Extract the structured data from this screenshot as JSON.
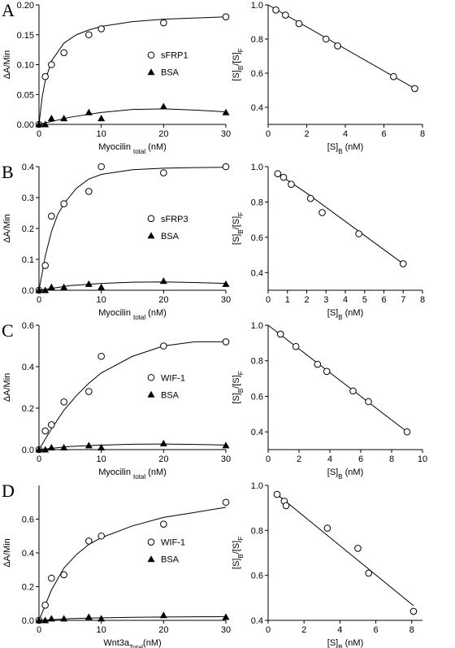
{
  "chart_data": [
    {
      "type": "scatter",
      "panel": "A",
      "xlabel": [
        "Myocilin ",
        "total",
        " (nM)"
      ],
      "ylabel": [
        "ΔA/Min"
      ],
      "xlim": [
        0,
        30
      ],
      "xticks": [
        0,
        10,
        20,
        30
      ],
      "ylim": [
        0,
        0.2
      ],
      "yticks": [
        {
          "value": 0,
          "label": "0.00"
        },
        0.05,
        {
          "value": 0.1,
          "label": "0.10"
        },
        0.15,
        {
          "value": 0.2,
          "label": "0.20"
        }
      ],
      "legend": "center right",
      "x": [
        0,
        1,
        2,
        4,
        8,
        10,
        20,
        30
      ],
      "series": [
        {
          "name": "sFRP1",
          "marker": "circle",
          "color": "#000000",
          "values": [
            0,
            0.08,
            0.1,
            0.12,
            0.15,
            0.16,
            0.17,
            0.18
          ],
          "fit": {
            "x": [
              0,
              0.5,
              1,
              2,
              4,
              6,
              8,
              10,
              15,
              20,
              25,
              30
            ],
            "values": [
              0,
              0.045,
              0.073,
              0.106,
              0.136,
              0.15,
              0.158,
              0.164,
              0.172,
              0.176,
              0.178,
              0.18
            ]
          }
        },
        {
          "name": "BSA",
          "marker": "triangle",
          "color": "#000000",
          "values": [
            0,
            0,
            0.01,
            0.01,
            0.02,
            0.01,
            0.03,
            0.02
          ],
          "fit": {
            "x": [
              0,
              5,
              10,
              15,
              20,
              25,
              30
            ],
            "values": [
              0,
              0.012,
              0.02,
              0.025,
              0.026,
              0.024,
              0.021
            ]
          }
        }
      ]
    },
    {
      "type": "scatter",
      "xlabel": [
        "[S]",
        "B",
        " (nM)"
      ],
      "ylabel": [
        "[S]",
        "B",
        "/[S]",
        "F"
      ],
      "xlim": [
        0,
        8
      ],
      "xticks": [
        0,
        2,
        4,
        6,
        8
      ],
      "ylim": [
        0.3,
        1.0
      ],
      "yticks": [
        0.4,
        0.6,
        0.8,
        {
          "value": 1.0,
          "label": "1.0"
        }
      ],
      "x": [
        0.4,
        0.9,
        1.6,
        3.0,
        3.6,
        6.5,
        7.6
      ],
      "values": [
        0.97,
        0.94,
        0.89,
        0.8,
        0.76,
        0.58,
        0.51
      ],
      "color": "#000000",
      "fit": {
        "x": [
          0,
          7.6
        ],
        "values": [
          1.0,
          0.51
        ]
      }
    },
    {
      "type": "scatter",
      "panel": "B",
      "xlabel": [
        "Myocilin ",
        "total",
        " (nM)"
      ],
      "ylabel": [
        "ΔA/Min"
      ],
      "xlim": [
        0,
        30
      ],
      "xticks": [
        0,
        10,
        20,
        30
      ],
      "ylim": [
        0,
        0.4
      ],
      "yticks": [
        {
          "value": 0,
          "label": "0.0"
        },
        0.1,
        0.2,
        0.3,
        0.4
      ],
      "legend": "center right",
      "x": [
        0,
        1,
        2,
        4,
        8,
        10,
        20,
        30
      ],
      "series": [
        {
          "name": "sFRP3",
          "marker": "circle",
          "color": "#000000",
          "values": [
            0,
            0.08,
            0.24,
            0.28,
            0.32,
            0.4,
            0.38,
            0.4
          ],
          "fit": {
            "x": [
              0,
              1,
              2,
              3,
              4,
              6,
              8,
              10,
              15,
              20,
              25,
              30
            ],
            "values": [
              0,
              0.11,
              0.19,
              0.245,
              0.28,
              0.33,
              0.36,
              0.375,
              0.39,
              0.395,
              0.397,
              0.398
            ]
          }
        },
        {
          "name": "BSA",
          "marker": "triangle",
          "color": "#000000",
          "values": [
            0,
            0,
            0.01,
            0.01,
            0.02,
            0.01,
            0.03,
            0.02
          ],
          "fit": {
            "x": [
              0,
              5,
              10,
              15,
              20,
              25,
              30
            ],
            "values": [
              0,
              0.015,
              0.022,
              0.026,
              0.027,
              0.025,
              0.022
            ]
          }
        }
      ]
    },
    {
      "type": "scatter",
      "xlabel": [
        "[S]",
        "B",
        " (nM)"
      ],
      "ylabel": [
        "[S]",
        "B",
        "/[S]",
        "F"
      ],
      "xlim": [
        0,
        8
      ],
      "xticks": [
        0,
        1,
        2,
        3,
        4,
        5,
        6,
        7,
        8
      ],
      "ylim": [
        0.3,
        1.0
      ],
      "yticks": [
        0.4,
        0.6,
        0.8,
        {
          "value": 1.0,
          "label": "1.0"
        }
      ],
      "x": [
        0.5,
        0.8,
        1.2,
        2.2,
        2.8,
        4.7,
        7.0
      ],
      "values": [
        0.96,
        0.94,
        0.9,
        0.82,
        0.74,
        0.62,
        0.45
      ],
      "color": "#000000",
      "fit": {
        "x": [
          0.5,
          2,
          4,
          6,
          7
        ],
        "values": [
          0.96,
          0.85,
          0.69,
          0.53,
          0.45
        ]
      }
    },
    {
      "type": "scatter",
      "panel": "C",
      "xlabel": [
        "Myocilin ",
        "total",
        " (nM)"
      ],
      "ylabel": [
        "ΔA/Min"
      ],
      "xlim": [
        0,
        30
      ],
      "xticks": [
        0,
        10,
        20,
        30
      ],
      "ylim": [
        0,
        0.6
      ],
      "yticks": [
        {
          "value": 0,
          "label": "0.0"
        },
        0.2,
        0.4,
        0.6
      ],
      "legend": "center right",
      "x": [
        0,
        1,
        2,
        4,
        8,
        10,
        20,
        30
      ],
      "series": [
        {
          "name": "WIF-1",
          "marker": "circle",
          "color": "#000000",
          "values": [
            0,
            0.09,
            0.12,
            0.23,
            0.28,
            0.45,
            0.5,
            0.52
          ],
          "fit": {
            "x": [
              0,
              2,
              4,
              6,
              8,
              10,
              15,
              20,
              25,
              30
            ],
            "values": [
              0,
              0.1,
              0.19,
              0.26,
              0.32,
              0.37,
              0.45,
              0.5,
              0.52,
              0.52
            ]
          }
        },
        {
          "name": "BSA",
          "marker": "triangle",
          "color": "#000000",
          "values": [
            0,
            0,
            0.01,
            0.01,
            0.02,
            0.01,
            0.03,
            0.02
          ],
          "fit": {
            "x": [
              0,
              5,
              10,
              15,
              20,
              25,
              30
            ],
            "values": [
              0,
              0.015,
              0.022,
              0.026,
              0.027,
              0.025,
              0.022
            ]
          }
        }
      ]
    },
    {
      "type": "scatter",
      "xlabel": [
        "[S]",
        "B",
        " (nM)"
      ],
      "ylabel": [
        "[S]",
        "B",
        "/[S]",
        "F"
      ],
      "xlim": [
        0,
        10
      ],
      "xticks": [
        0,
        2,
        4,
        6,
        8,
        10
      ],
      "ylim": [
        0.3,
        1.0
      ],
      "yticks": [
        0.4,
        0.6,
        0.8,
        {
          "value": 1.0,
          "label": "1.0"
        }
      ],
      "x": [
        0.8,
        1.8,
        3.2,
        3.8,
        5.5,
        6.5,
        9.0
      ],
      "values": [
        0.95,
        0.88,
        0.78,
        0.74,
        0.63,
        0.57,
        0.4
      ],
      "color": "#000000",
      "fit": {
        "x": [
          0,
          9
        ],
        "values": [
          1.0,
          0.4
        ]
      }
    },
    {
      "type": "scatter",
      "panel": "D",
      "xlabel": [
        "Wnt3a",
        "Total",
        "(nM)"
      ],
      "ylabel": [
        "ΔA/Min"
      ],
      "xlim": [
        0,
        30
      ],
      "xticks": [
        0,
        10,
        20,
        30
      ],
      "ylim": [
        0,
        0.8
      ],
      "yticks": [
        {
          "value": 0,
          "label": "0.0"
        },
        0.2,
        0.4,
        0.6
      ],
      "legend": "center right",
      "x": [
        0,
        1,
        2,
        4,
        8,
        10,
        20,
        30
      ],
      "series": [
        {
          "name": "WIF-1",
          "marker": "circle",
          "color": "#000000",
          "values": [
            0,
            0.09,
            0.25,
            0.27,
            0.47,
            0.5,
            0.57,
            0.7
          ],
          "fit": {
            "x": [
              0,
              2,
              4,
              6,
              8,
              10,
              15,
              20,
              25,
              30
            ],
            "values": [
              0,
              0.18,
              0.31,
              0.39,
              0.45,
              0.49,
              0.56,
              0.61,
              0.64,
              0.67
            ]
          }
        },
        {
          "name": "BSA",
          "marker": "triangle",
          "color": "#000000",
          "values": [
            0,
            0,
            0.01,
            0.01,
            0.02,
            0.01,
            0.03,
            0.02
          ],
          "fit": {
            "x": [
              0,
              5,
              10,
              15,
              20,
              25,
              30
            ],
            "values": [
              0,
              0.01,
              0.015,
              0.018,
              0.02,
              0.021,
              0.022
            ]
          }
        }
      ]
    },
    {
      "type": "scatter",
      "xlabel": [
        "[S]",
        "B",
        "  (nM)"
      ],
      "ylabel": [
        "[S]",
        "B",
        "/[S]",
        "F"
      ],
      "xlim": [
        0,
        8.6
      ],
      "xticks": [
        0,
        2,
        4,
        6,
        8
      ],
      "ylim": [
        0.4,
        1.0
      ],
      "yticks": [
        0.4,
        0.6,
        0.8,
        {
          "value": 1.0,
          "label": "1.0"
        }
      ],
      "x": [
        0.5,
        0.9,
        1.0,
        3.3,
        5.0,
        5.6,
        8.1
      ],
      "values": [
        0.96,
        0.93,
        0.91,
        0.81,
        0.72,
        0.61,
        0.44
      ],
      "color": "#000000",
      "fit": {
        "x": [
          0.5,
          8.1
        ],
        "values": [
          0.96,
          0.465
        ]
      }
    }
  ]
}
